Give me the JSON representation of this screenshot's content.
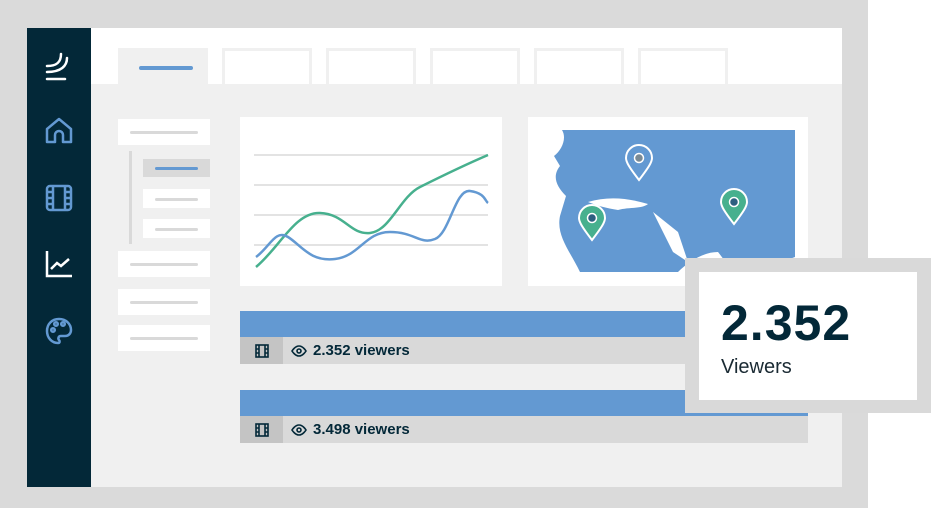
{
  "sidebar": {
    "items": [
      {
        "icon": "logo-icon"
      },
      {
        "icon": "home-icon"
      },
      {
        "icon": "film-icon"
      },
      {
        "icon": "chart-icon"
      },
      {
        "icon": "palette-icon"
      }
    ]
  },
  "colors": {
    "sidebar": "#032838",
    "accent": "#6399d2",
    "green": "#47b08e",
    "content_bg": "#f0f0f0"
  },
  "streams": [
    {
      "viewers": "2.352 viewers"
    },
    {
      "viewers": "3.498 viewers"
    }
  ],
  "stat_card": {
    "value": "2.352",
    "label": "Viewers"
  }
}
